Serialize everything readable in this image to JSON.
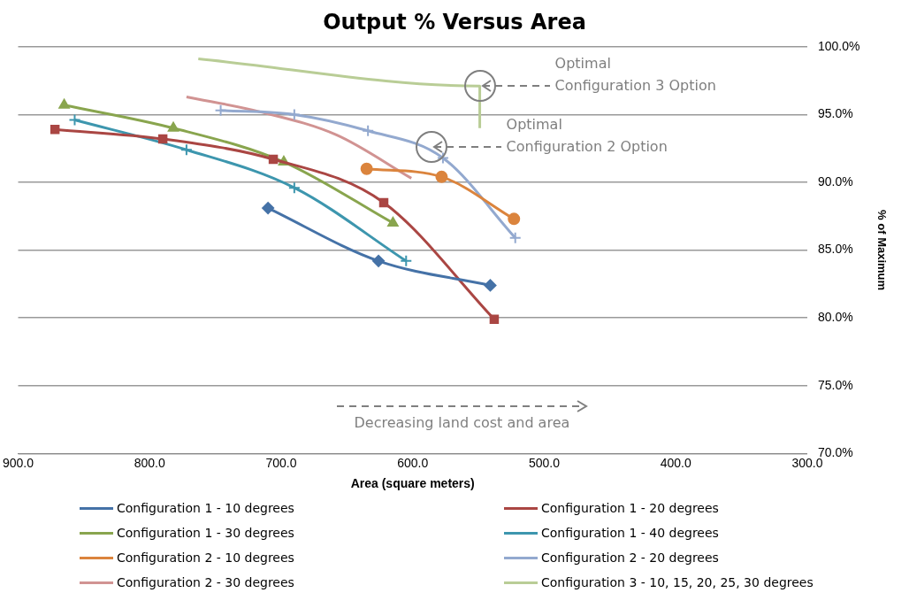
{
  "chart_data": {
    "type": "line",
    "title": "Output % Versus Area",
    "xlabel": "Area (square meters)",
    "ylabel": "% of Maximum",
    "xlim": [
      900,
      300
    ],
    "xticks": [
      {
        "value": 900,
        "label": "900.0"
      },
      {
        "value": 800,
        "label": "800.0"
      },
      {
        "value": 700,
        "label": "700.0"
      },
      {
        "value": 600,
        "label": "600.0"
      },
      {
        "value": 500,
        "label": "500.0"
      },
      {
        "value": 400,
        "label": "400.0"
      },
      {
        "value": 300,
        "label": "300.0"
      }
    ],
    "ylim": [
      70,
      100
    ],
    "yticks": [
      {
        "value": 70,
        "label": "70.0%"
      },
      {
        "value": 75,
        "label": "75.0%"
      },
      {
        "value": 80,
        "label": "80.0%"
      },
      {
        "value": 85,
        "label": "85.0%"
      },
      {
        "value": 90,
        "label": "90.0%"
      },
      {
        "value": 95,
        "label": "95.0%"
      },
      {
        "value": 100,
        "label": "100.0%"
      }
    ],
    "grid": "y",
    "legend": "bottom",
    "series": [
      {
        "name": "Configuration 1 - 10 degrees",
        "color": "#4572a7",
        "marker": "diamond",
        "x": [
          710,
          626,
          541
        ],
        "values": [
          88.1,
          84.2,
          82.4
        ]
      },
      {
        "name": "Configuration 1 - 20 degrees",
        "color": "#aa4643",
        "marker": "square",
        "x": [
          872,
          790,
          706,
          622,
          538
        ],
        "values": [
          93.9,
          93.2,
          91.7,
          88.5,
          79.9
        ]
      },
      {
        "name": "Configuration 1 - 30 degrees",
        "color": "#89a54e",
        "marker": "triangle",
        "x": [
          865,
          782,
          698,
          615
        ],
        "values": [
          95.7,
          94.0,
          91.5,
          87.0
        ]
      },
      {
        "name": "Configuration 1 - 40 degrees",
        "color": "#3d96ae",
        "marker": "cross",
        "x": [
          857,
          772,
          690,
          605
        ],
        "values": [
          94.6,
          92.4,
          89.6,
          84.2
        ]
      },
      {
        "name": "Configuration 2 - 10 degrees",
        "color": "#db843d",
        "marker": "circle",
        "x": [
          635,
          578,
          523
        ],
        "values": [
          91.0,
          90.4,
          87.3
        ]
      },
      {
        "name": "Configuration 2 - 20 degrees",
        "color": "#93a9cf",
        "marker": "cross",
        "x": [
          746,
          690,
          634,
          577,
          522
        ],
        "values": [
          95.3,
          95.0,
          93.8,
          91.8,
          85.9
        ]
      },
      {
        "name": "Configuration 2 - 30 degrees",
        "color": "#d19392",
        "marker": "none",
        "x": [
          772,
          716,
          658,
          601
        ],
        "values": [
          96.3,
          95.2,
          93.5,
          90.3
        ]
      },
      {
        "name": "Configuration 3 - 10, 15, 20, 25, 30 degrees",
        "color": "#b9cd96",
        "marker": "none",
        "x": [
          763,
          549,
          549,
          549
        ],
        "values": [
          99.1,
          97.1,
          95.9,
          94.0
        ]
      }
    ],
    "annotations": [
      {
        "text": "Optimal\nConfiguration 3 Option",
        "x": 549,
        "y": 97.1
      },
      {
        "text": "Optimal\nConfiguration 2 Option",
        "x": 586,
        "y": 92.6
      },
      "Decreasing land cost and area"
    ]
  }
}
